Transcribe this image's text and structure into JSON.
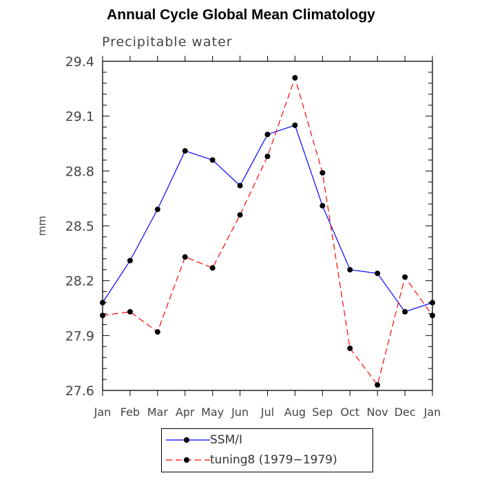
{
  "chart_data": {
    "type": "line",
    "title": "Annual Cycle Global Mean Climatology",
    "subtitle": "Precipitable water",
    "xlabel": "",
    "ylabel": "mm",
    "categories": [
      "Jan",
      "Feb",
      "Mar",
      "Apr",
      "May",
      "Jun",
      "Jul",
      "Aug",
      "Sep",
      "Oct",
      "Nov",
      "Dec",
      "Jan"
    ],
    "ylim": [
      27.6,
      29.4
    ],
    "yticks": [
      "27.6",
      "27.9",
      "28.2",
      "28.5",
      "28.8",
      "29.1",
      "29.4"
    ],
    "series": [
      {
        "name": "SSM/I",
        "color": "#0000ff",
        "line_style": "solid",
        "values": [
          28.08,
          28.31,
          28.59,
          28.91,
          28.86,
          28.72,
          29.0,
          29.05,
          28.61,
          28.26,
          28.24,
          28.03,
          28.08
        ]
      },
      {
        "name": "tuning8 (1979−1979)",
        "color": "#ff0000",
        "line_style": "dashed",
        "values": [
          28.01,
          28.03,
          27.92,
          28.33,
          28.27,
          28.56,
          28.88,
          29.31,
          28.79,
          27.83,
          27.63,
          28.22,
          28.01
        ]
      }
    ],
    "legend_position": "bottom"
  }
}
